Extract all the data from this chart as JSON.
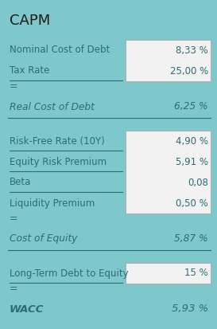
{
  "title": "CAPM",
  "bg_color": "#7EC8CB",
  "box_color": "#F2F2F2",
  "text_color": "#2E6B75",
  "title_color": "#1A1A1A",
  "figsize": [
    2.73,
    4.13
  ],
  "dpi": 100,
  "box_border_color": "#B0B0B0",
  "sections": [
    {
      "rows": [
        {
          "label": "Nominal Cost of Debt",
          "value": "8,33 %",
          "underline": false,
          "italic": false
        },
        {
          "label": "Tax Rate",
          "value": "25,00 %",
          "underline": true,
          "italic": false
        }
      ],
      "result_label": "Real Cost of Debt",
      "result_value": "6,25 %",
      "full_rule_after": true
    },
    {
      "rows": [
        {
          "label": "Risk-Free Rate (10Y)",
          "value": "4,90 %",
          "underline": true,
          "italic": false
        },
        {
          "label": "Equity Risk Premium",
          "value": "5,91 %",
          "underline": true,
          "italic": false
        },
        {
          "label": "Beta",
          "value": "0,08",
          "underline": true,
          "italic": false
        },
        {
          "label": "Liquidity Premium",
          "value": "0,50 %",
          "underline": false,
          "italic": false
        }
      ],
      "result_label": "Cost of Equity",
      "result_value": "5,87 %",
      "full_rule_after": true
    },
    {
      "rows": [
        {
          "label": "Long-Term Debt to Equity",
          "value": "15 %",
          "underline": true,
          "italic": false
        }
      ],
      "result_label": "WACC",
      "result_value": "5,93 %",
      "full_rule_after": false
    }
  ]
}
